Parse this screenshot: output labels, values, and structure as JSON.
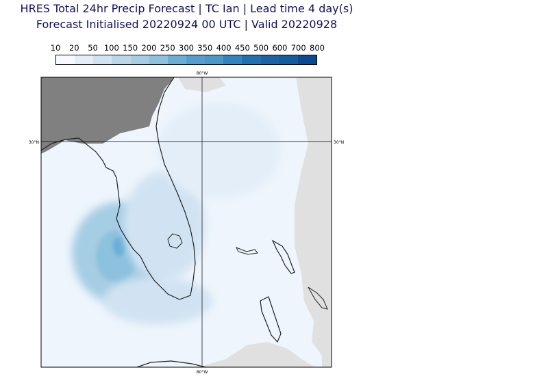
{
  "title": {
    "line1": "HRES Total 24hr Precip Forecast | TC Ian | Lead time 4 day(s)",
    "line2": "Forecast Initialised 20220924 00 UTC | Valid 20220928"
  },
  "colorbar": {
    "labels": [
      "10",
      "20",
      "50",
      "100",
      "150",
      "200",
      "250",
      "300",
      "350",
      "400",
      "450",
      "500",
      "600",
      "700",
      "800"
    ],
    "colors": [
      "#f7fbff",
      "#e3eef9",
      "#d1e3f3",
      "#bad6eb",
      "#a5cde3",
      "#8dc1dd",
      "#6aaed6",
      "#539ecd",
      "#4a98c9",
      "#3383be",
      "#2070b4",
      "#1b63a6",
      "#125ca1",
      "#0a4a90",
      "#08306b"
    ]
  },
  "map": {
    "lon_label_top": "80°W",
    "lon_label_bottom": "80°W",
    "lat_label_left": "30°N",
    "lat_label_right": "30°N",
    "colors": {
      "land": "#808080",
      "outside_forecast": "#e0e0e0",
      "coastline": "#202020"
    }
  }
}
